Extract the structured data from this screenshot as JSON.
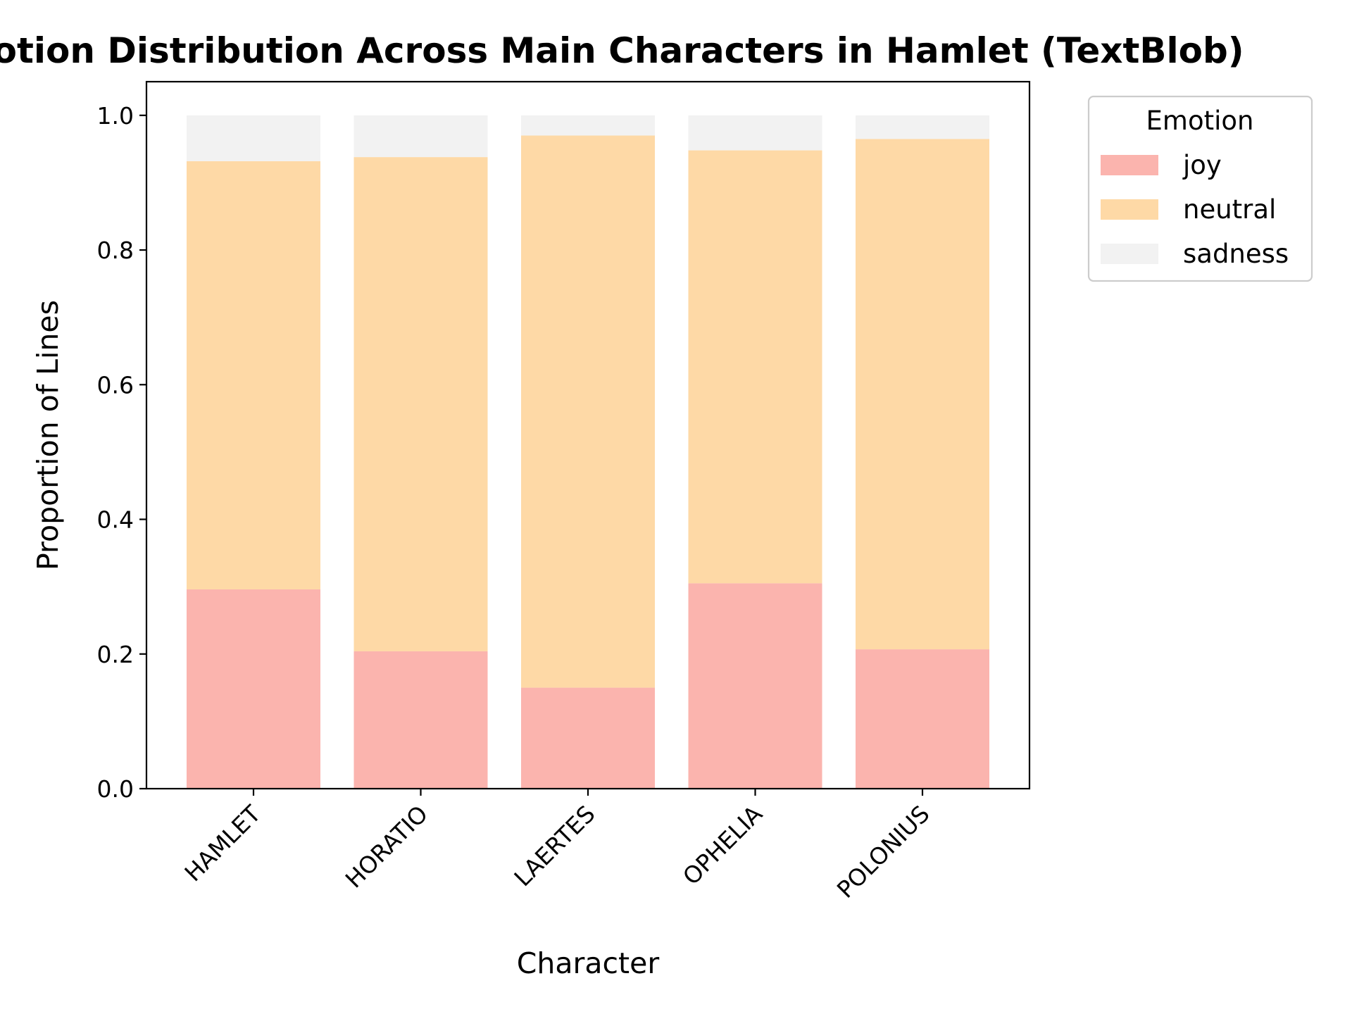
{
  "chart_data": {
    "type": "bar",
    "stacked": true,
    "title": "Emotion Distribution Across Main Characters in Hamlet (TextBlob)",
    "xlabel": "Character",
    "ylabel": "Proportion of Lines",
    "categories": [
      "HAMLET",
      "HORATIO",
      "LAERTES",
      "OPHELIA",
      "POLONIUS"
    ],
    "series": [
      {
        "name": "joy",
        "color": "#fbb4ae",
        "values": [
          0.296,
          0.204,
          0.15,
          0.305,
          0.207
        ]
      },
      {
        "name": "neutral",
        "color": "#fed9a6",
        "values": [
          0.636,
          0.734,
          0.82,
          0.643,
          0.758
        ]
      },
      {
        "name": "sadness",
        "color": "#f2f2f2",
        "values": [
          0.068,
          0.062,
          0.03,
          0.052,
          0.035
        ]
      }
    ],
    "ylim": [
      0,
      1.05
    ],
    "yticks": [
      0.0,
      0.2,
      0.4,
      0.6,
      0.8,
      1.0
    ],
    "ytick_labels": [
      "0.0",
      "0.2",
      "0.4",
      "0.6",
      "0.8",
      "1.0"
    ],
    "grid": false,
    "legend": {
      "title": "Emotion",
      "placement": "outside-top-right"
    }
  }
}
